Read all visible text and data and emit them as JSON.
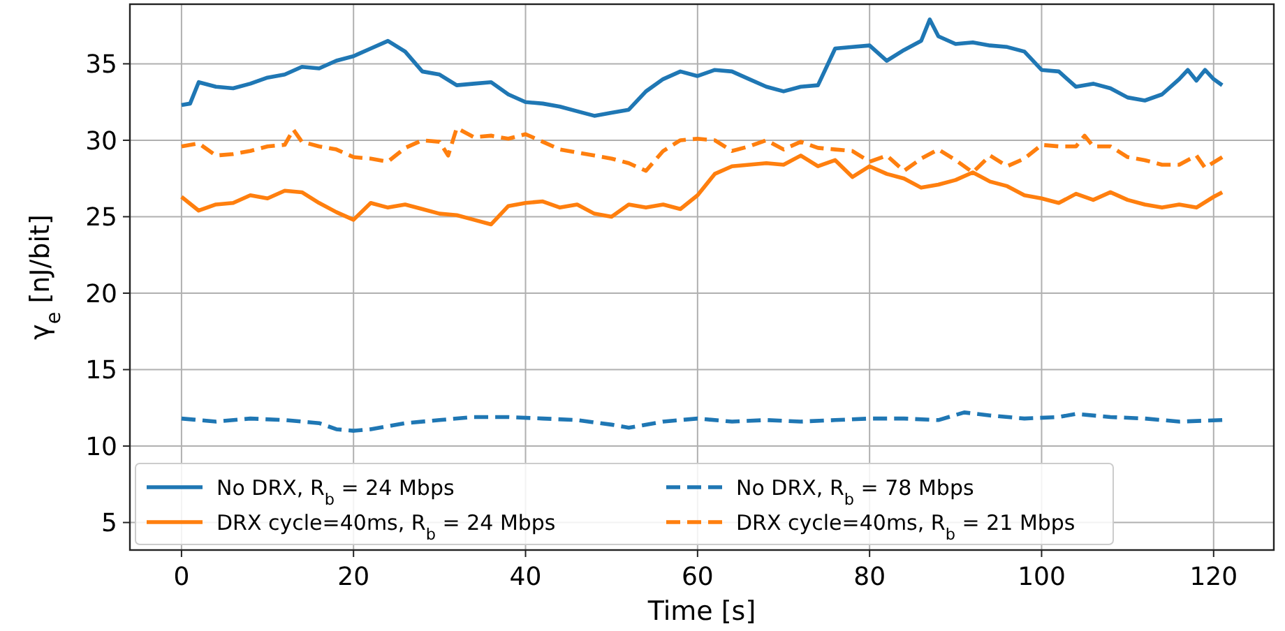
{
  "chart_data": {
    "type": "line",
    "xlabel": "Time [s]",
    "ylabel": "γ$_{e}$ [nJ/bit]",
    "xlim": [
      -6,
      127
    ],
    "ylim": [
      3.2,
      38.9
    ],
    "xticks": [
      0,
      20,
      40,
      60,
      80,
      100,
      120
    ],
    "yticks": [
      5,
      10,
      15,
      20,
      25,
      30,
      35
    ],
    "grid": true,
    "legend": "bottom left",
    "series": [
      {
        "name": "No DRX, R$_{b}$ = 24 Mbps",
        "color": "#1f77b4",
        "line_style": "solid",
        "x": [
          0,
          1,
          2,
          4,
          6,
          8,
          10,
          12,
          14,
          16,
          18,
          20,
          22,
          24,
          26,
          28,
          30,
          32,
          34,
          36,
          38,
          40,
          42,
          44,
          46,
          48,
          50,
          52,
          54,
          56,
          58,
          60,
          62,
          64,
          66,
          68,
          70,
          72,
          74,
          76,
          78,
          80,
          82,
          84,
          86,
          87,
          88,
          90,
          92,
          94,
          96,
          98,
          100,
          102,
          104,
          106,
          108,
          110,
          112,
          114,
          116,
          117,
          118,
          119,
          120,
          121
        ],
        "values": [
          32.3,
          32.4,
          33.8,
          33.5,
          33.4,
          33.7,
          34.1,
          34.3,
          34.8,
          34.7,
          35.2,
          35.5,
          36.0,
          36.5,
          35.8,
          34.5,
          34.3,
          33.6,
          33.7,
          33.8,
          33.0,
          32.5,
          32.4,
          32.2,
          31.9,
          31.6,
          31.8,
          32.0,
          33.2,
          34.0,
          34.5,
          34.2,
          34.6,
          34.5,
          34.0,
          33.5,
          33.2,
          33.5,
          33.6,
          36.0,
          36.1,
          36.2,
          35.2,
          35.9,
          36.5,
          37.9,
          36.8,
          36.3,
          36.4,
          36.2,
          36.1,
          35.8,
          34.6,
          34.5,
          33.5,
          33.7,
          33.4,
          32.8,
          32.6,
          33.0,
          34.0,
          34.6,
          33.9,
          34.6,
          34.0,
          33.6
        ]
      },
      {
        "name": "DRX cycle=40ms, R$_{b}$ = 24 Mbps",
        "color": "#ff7f0e",
        "line_style": "solid",
        "x": [
          0,
          2,
          4,
          6,
          8,
          10,
          12,
          14,
          16,
          18,
          20,
          22,
          24,
          26,
          28,
          30,
          32,
          34,
          36,
          38,
          40,
          42,
          44,
          46,
          48,
          50,
          52,
          54,
          56,
          58,
          60,
          62,
          64,
          66,
          68,
          70,
          72,
          74,
          76,
          78,
          80,
          82,
          84,
          86,
          88,
          90,
          92,
          94,
          96,
          98,
          100,
          102,
          104,
          106,
          108,
          110,
          112,
          114,
          116,
          118,
          120,
          121
        ],
        "values": [
          26.3,
          25.4,
          25.8,
          25.9,
          26.4,
          26.2,
          26.7,
          26.6,
          25.9,
          25.3,
          24.8,
          25.9,
          25.6,
          25.8,
          25.5,
          25.2,
          25.1,
          24.8,
          24.5,
          25.7,
          25.9,
          26.0,
          25.6,
          25.8,
          25.2,
          25.0,
          25.8,
          25.6,
          25.8,
          25.5,
          26.4,
          27.8,
          28.3,
          28.4,
          28.5,
          28.4,
          29.0,
          28.3,
          28.7,
          27.6,
          28.3,
          27.8,
          27.5,
          26.9,
          27.1,
          27.4,
          27.9,
          27.3,
          27.0,
          26.4,
          26.2,
          25.9,
          26.5,
          26.1,
          26.6,
          26.1,
          25.8,
          25.6,
          25.8,
          25.6,
          26.3,
          26.6
        ]
      },
      {
        "name": "No DRX, R$_{b}$ = 78 Mbps",
        "color": "#1f77b4",
        "line_style": "dashed",
        "x": [
          0,
          4,
          8,
          12,
          16,
          18,
          20,
          22,
          26,
          30,
          34,
          38,
          42,
          46,
          50,
          52,
          56,
          60,
          64,
          68,
          72,
          76,
          80,
          84,
          88,
          91,
          94,
          98,
          102,
          104,
          108,
          112,
          116,
          121
        ],
        "values": [
          11.8,
          11.6,
          11.8,
          11.7,
          11.5,
          11.1,
          11.0,
          11.1,
          11.5,
          11.7,
          11.9,
          11.9,
          11.8,
          11.7,
          11.4,
          11.2,
          11.6,
          11.8,
          11.6,
          11.7,
          11.6,
          11.7,
          11.8,
          11.8,
          11.7,
          12.2,
          12.0,
          11.8,
          11.9,
          12.1,
          11.9,
          11.8,
          11.6,
          11.7
        ]
      },
      {
        "name": "DRX cycle=40ms, R$_{b}$ = 21 Mbps",
        "color": "#ff7f0e",
        "line_style": "dashed",
        "x": [
          0,
          2,
          4,
          6,
          8,
          10,
          12,
          13,
          14,
          16,
          18,
          20,
          22,
          24,
          26,
          28,
          30,
          31,
          32,
          34,
          36,
          38,
          40,
          42,
          44,
          46,
          48,
          50,
          52,
          54,
          56,
          58,
          60,
          62,
          64,
          66,
          68,
          70,
          72,
          74,
          76,
          78,
          80,
          82,
          84,
          86,
          88,
          90,
          92,
          94,
          96,
          98,
          100,
          102,
          104,
          105,
          106,
          108,
          110,
          112,
          114,
          116,
          118,
          119,
          121
        ],
        "values": [
          29.6,
          29.8,
          29.0,
          29.1,
          29.3,
          29.6,
          29.7,
          30.7,
          29.9,
          29.6,
          29.4,
          28.9,
          28.8,
          28.6,
          29.5,
          30.0,
          29.9,
          29.0,
          30.8,
          30.2,
          30.3,
          30.1,
          30.4,
          29.9,
          29.4,
          29.2,
          29.0,
          28.8,
          28.5,
          28.0,
          29.3,
          30.0,
          30.1,
          30.0,
          29.3,
          29.6,
          30.0,
          29.4,
          29.9,
          29.5,
          29.4,
          29.3,
          28.6,
          29.0,
          28.0,
          28.8,
          29.4,
          28.7,
          27.9,
          29.0,
          28.3,
          28.8,
          29.7,
          29.6,
          29.6,
          30.3,
          29.6,
          29.6,
          28.9,
          28.7,
          28.4,
          28.4,
          29.0,
          28.2,
          28.9
        ]
      }
    ]
  }
}
